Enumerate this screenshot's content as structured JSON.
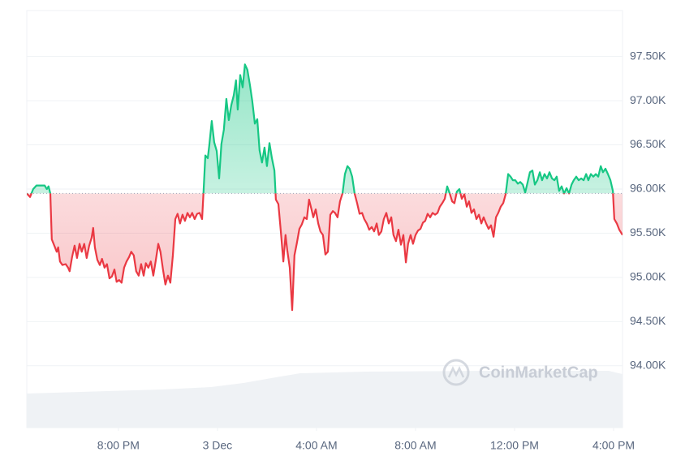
{
  "chart_data": {
    "type": "line",
    "watermark": "CoinMarketCap",
    "baseline": 95950,
    "up_color": "#16c784",
    "down_color": "#ea3943",
    "grid": true,
    "xlim": [
      16.3,
      40.36
    ],
    "ylim": [
      93300,
      98020
    ],
    "xticks": [
      {
        "value": 20,
        "label": "8:00 PM"
      },
      {
        "value": 24,
        "label": "3 Dec"
      },
      {
        "value": 28,
        "label": "4:00 AM"
      },
      {
        "value": 32,
        "label": "8:00 AM"
      },
      {
        "value": 36,
        "label": "12:00 PM"
      },
      {
        "value": 40,
        "label": "4:00 PM"
      }
    ],
    "yticks": [
      {
        "value": 94000,
        "label": "94.00K"
      },
      {
        "value": 94500,
        "label": "94.50K"
      },
      {
        "value": 95000,
        "label": "95.00K"
      },
      {
        "value": 95500,
        "label": "95.50K"
      },
      {
        "value": 96000,
        "label": "96.00K"
      },
      {
        "value": 96500,
        "label": "96.50K"
      },
      {
        "value": 97000,
        "label": "97.00K"
      },
      {
        "value": 97500,
        "label": "97.50K"
      }
    ],
    "x": [
      16.3,
      16.43,
      16.56,
      16.69,
      16.85,
      17.02,
      17.11,
      17.18,
      17.25,
      17.31,
      17.41,
      17.51,
      17.57,
      17.64,
      17.74,
      17.87,
      17.97,
      18.03,
      18.13,
      18.23,
      18.33,
      18.43,
      18.52,
      18.62,
      18.72,
      18.82,
      18.92,
      18.98,
      19.05,
      19.15,
      19.25,
      19.34,
      19.44,
      19.54,
      19.64,
      19.74,
      19.84,
      19.93,
      20.03,
      20.13,
      20.23,
      20.33,
      20.43,
      20.52,
      20.62,
      20.72,
      20.82,
      20.92,
      21.02,
      21.11,
      21.21,
      21.31,
      21.41,
      21.51,
      21.61,
      21.7,
      21.8,
      21.9,
      22.0,
      22.1,
      22.2,
      22.3,
      22.39,
      22.49,
      22.59,
      22.69,
      22.79,
      22.89,
      22.98,
      23.08,
      23.18,
      23.28,
      23.38,
      23.44,
      23.51,
      23.61,
      23.67,
      23.77,
      23.87,
      23.97,
      24.07,
      24.16,
      24.26,
      24.36,
      24.46,
      24.56,
      24.66,
      24.75,
      24.82,
      24.92,
      25.02,
      25.11,
      25.21,
      25.31,
      25.41,
      25.51,
      25.61,
      25.7,
      25.8,
      25.9,
      26.0,
      26.1,
      26.2,
      26.3,
      26.36,
      26.46,
      26.56,
      26.66,
      26.75,
      26.82,
      26.92,
      27.02,
      27.11,
      27.21,
      27.31,
      27.41,
      27.51,
      27.61,
      27.7,
      27.8,
      27.87,
      27.97,
      28.07,
      28.16,
      28.26,
      28.36,
      28.46,
      28.56,
      28.66,
      28.75,
      28.85,
      28.95,
      29.05,
      29.15,
      29.25,
      29.34,
      29.44,
      29.54,
      29.64,
      29.74,
      29.84,
      29.93,
      30.03,
      30.13,
      30.23,
      30.33,
      30.43,
      30.52,
      30.62,
      30.72,
      30.82,
      30.92,
      31.02,
      31.11,
      31.21,
      31.31,
      31.41,
      31.51,
      31.61,
      31.7,
      31.8,
      31.9,
      32.0,
      32.1,
      32.2,
      32.3,
      32.39,
      32.49,
      32.59,
      32.69,
      32.79,
      32.89,
      32.98,
      33.08,
      33.18,
      33.28,
      33.38,
      33.48,
      33.57,
      33.67,
      33.77,
      33.87,
      33.97,
      34.07,
      34.16,
      34.26,
      34.36,
      34.46,
      34.56,
      34.66,
      34.75,
      34.85,
      34.95,
      35.05,
      35.15,
      35.25,
      35.34,
      35.44,
      35.54,
      35.64,
      35.74,
      35.84,
      35.93,
      36.03,
      36.13,
      36.23,
      36.33,
      36.43,
      36.52,
      36.62,
      36.72,
      36.82,
      36.92,
      37.02,
      37.11,
      37.21,
      37.31,
      37.41,
      37.51,
      37.61,
      37.7,
      37.8,
      37.9,
      38.0,
      38.1,
      38.2,
      38.3,
      38.39,
      38.49,
      38.59,
      38.69,
      38.79,
      38.89,
      38.98,
      39.08,
      39.18,
      39.28,
      39.38,
      39.48,
      39.57,
      39.67,
      39.77,
      39.87,
      39.97,
      40.03,
      40.13,
      40.23,
      40.36
    ],
    "values": [
      95950,
      95910,
      96000,
      96040,
      96040,
      96040,
      96000,
      96030,
      95950,
      95430,
      95360,
      95290,
      95340,
      95180,
      95140,
      95150,
      95110,
      95070,
      95230,
      95360,
      95220,
      95380,
      95290,
      95380,
      95220,
      95360,
      95450,
      95560,
      95340,
      95200,
      95140,
      95210,
      95110,
      95150,
      94990,
      95010,
      95090,
      94950,
      94970,
      94940,
      95110,
      95180,
      95230,
      95290,
      95250,
      95070,
      95020,
      95150,
      95020,
      95160,
      95110,
      95180,
      95020,
      95190,
      95380,
      95290,
      95090,
      94920,
      95020,
      94940,
      95250,
      95660,
      95720,
      95610,
      95710,
      95640,
      95730,
      95680,
      95730,
      95660,
      95720,
      95730,
      95660,
      95970,
      96380,
      96350,
      96490,
      96770,
      96530,
      96430,
      96120,
      96510,
      96670,
      97020,
      96780,
      96950,
      97060,
      97230,
      96900,
      97290,
      97150,
      97410,
      97350,
      97180,
      96990,
      96740,
      96790,
      96440,
      96300,
      96470,
      96260,
      96520,
      96350,
      96210,
      95880,
      95830,
      95520,
      95180,
      95480,
      95310,
      95110,
      94630,
      95250,
      95390,
      95550,
      95600,
      95680,
      95660,
      95880,
      95770,
      95680,
      95770,
      95610,
      95520,
      95480,
      95260,
      95290,
      95710,
      95750,
      95730,
      95680,
      95860,
      95950,
      96170,
      96260,
      96230,
      96140,
      95950,
      95840,
      95720,
      95730,
      95660,
      95610,
      95540,
      95570,
      95520,
      95610,
      95480,
      95520,
      95660,
      95730,
      95610,
      95680,
      95480,
      95410,
      95540,
      95370,
      95480,
      95170,
      95380,
      95480,
      95380,
      95480,
      95530,
      95550,
      95620,
      95640,
      95720,
      95680,
      95730,
      95710,
      95730,
      95800,
      95840,
      95890,
      96030,
      95950,
      95860,
      95840,
      95970,
      96000,
      95890,
      95940,
      95800,
      95860,
      95730,
      95770,
      95660,
      95710,
      95610,
      95680,
      95610,
      95550,
      95590,
      95460,
      95680,
      95730,
      95800,
      95840,
      95940,
      96170,
      96140,
      96100,
      96100,
      96060,
      96080,
      96050,
      95960,
      96070,
      96190,
      96210,
      96050,
      96100,
      96190,
      96100,
      96170,
      96120,
      96190,
      96120,
      96100,
      96140,
      95980,
      96030,
      95950,
      96010,
      95950,
      96050,
      96100,
      96140,
      96100,
      96120,
      96100,
      96170,
      96100,
      96170,
      96140,
      96170,
      96140,
      96260,
      96190,
      96230,
      96170,
      96100,
      95980,
      95660,
      95610,
      95540,
      95480
    ],
    "volume": {
      "color": "#eff2f5",
      "x": [
        16.3,
        18.49,
        21.77,
        23.74,
        25.05,
        26.36,
        27.34,
        29.97,
        34.89,
        39.8,
        40.36
      ],
      "values": [
        42,
        44,
        47,
        50,
        55,
        62,
        67,
        69,
        70,
        70,
        66
      ]
    }
  }
}
